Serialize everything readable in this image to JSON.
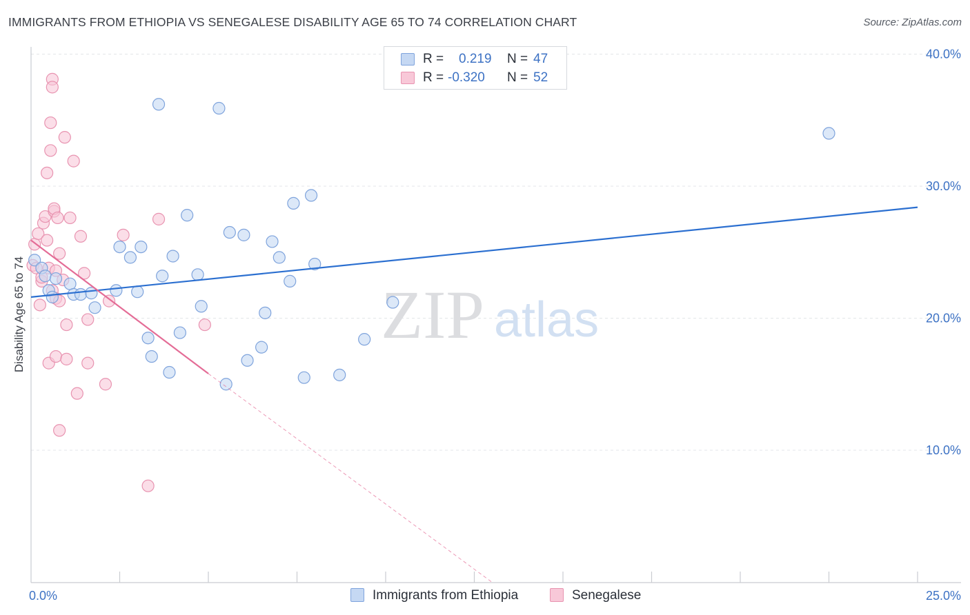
{
  "header": {
    "title": "IMMIGRANTS FROM ETHIOPIA VS SENEGALESE DISABILITY AGE 65 TO 74 CORRELATION CHART",
    "source": "Source: ZipAtlas.com"
  },
  "watermark": {
    "part1": "ZIP",
    "part2": "atlas"
  },
  "legend": {
    "rows": [
      {
        "r_label": "R =",
        "r_value": "0.219",
        "n_label": "N =",
        "n_value": "47"
      },
      {
        "r_label": "R =",
        "r_value": "-0.320",
        "n_label": "N =",
        "n_value": "52"
      }
    ]
  },
  "bottom_legend": {
    "series1": "Immigrants from Ethiopia",
    "series2": "Senegalese"
  },
  "colors": {
    "ethiopia_fill": "#c5d8f3",
    "ethiopia_stroke": "#7ea3dc",
    "ethiopia_line": "#2b6fd0",
    "senegalese_fill": "#f8c8d8",
    "senegalese_stroke": "#e893b0",
    "senegalese_line": "#e46c96",
    "grid": "#e3e5e8",
    "tick_label": "#3d72c4"
  },
  "chart_data": {
    "type": "scatter",
    "title": "IMMIGRANTS FROM ETHIOPIA VS SENEGALESE DISABILITY AGE 65 TO 74 CORRELATION CHART",
    "xlabel": "",
    "ylabel": "Disability Age 65 to 74",
    "xlim": [
      0,
      25
    ],
    "ylim": [
      0,
      40
    ],
    "x_tick_labels": [
      {
        "value": 0,
        "label": "0.0%"
      },
      {
        "value": 25,
        "label": "25.0%"
      }
    ],
    "y_tick_labels": [
      {
        "value": 10,
        "label": "10.0%"
      },
      {
        "value": 20,
        "label": "20.0%"
      },
      {
        "value": 30,
        "label": "30.0%"
      },
      {
        "value": 40,
        "label": "40.0%"
      }
    ],
    "gridlines_y": [
      10,
      20,
      30,
      40
    ],
    "series": [
      {
        "name": "Immigrants from Ethiopia",
        "R": 0.219,
        "N": 47,
        "trend": {
          "x0": 0,
          "y0": 21.6,
          "x1": 25,
          "y1": 28.4
        },
        "points": [
          [
            0.1,
            24.4
          ],
          [
            0.3,
            23.8
          ],
          [
            0.4,
            23.2
          ],
          [
            0.5,
            22.1
          ],
          [
            0.6,
            21.6
          ],
          [
            0.7,
            23.0
          ],
          [
            1.1,
            22.6
          ],
          [
            1.2,
            21.8
          ],
          [
            1.4,
            21.8
          ],
          [
            1.7,
            21.9
          ],
          [
            1.8,
            20.8
          ],
          [
            2.4,
            22.1
          ],
          [
            2.5,
            25.4
          ],
          [
            2.8,
            24.6
          ],
          [
            3.0,
            22.0
          ],
          [
            3.1,
            25.4
          ],
          [
            3.3,
            18.5
          ],
          [
            3.4,
            17.1
          ],
          [
            3.6,
            36.2
          ],
          [
            3.7,
            23.2
          ],
          [
            3.9,
            15.9
          ],
          [
            4.0,
            24.7
          ],
          [
            4.2,
            18.9
          ],
          [
            4.4,
            27.8
          ],
          [
            4.7,
            23.3
          ],
          [
            4.8,
            20.9
          ],
          [
            5.3,
            35.9
          ],
          [
            5.5,
            15.0
          ],
          [
            5.6,
            26.5
          ],
          [
            6.0,
            26.3
          ],
          [
            6.1,
            16.8
          ],
          [
            6.5,
            17.8
          ],
          [
            6.6,
            20.4
          ],
          [
            6.8,
            25.8
          ],
          [
            7.0,
            24.6
          ],
          [
            7.3,
            22.8
          ],
          [
            7.4,
            28.7
          ],
          [
            7.7,
            15.5
          ],
          [
            7.9,
            29.3
          ],
          [
            8.0,
            24.1
          ],
          [
            8.7,
            15.7
          ],
          [
            9.4,
            18.4
          ],
          [
            10.2,
            21.2
          ],
          [
            22.5,
            34.0
          ]
        ]
      },
      {
        "name": "Senegalese",
        "R": -0.32,
        "N": 52,
        "trend": {
          "x0": 0,
          "y0": 25.9,
          "x1": 5.0,
          "y1": 15.8
        },
        "trend_extension": {
          "x0": 5.0,
          "y0": 15.8,
          "x1": 13.0,
          "y1": 0.0
        },
        "points": [
          [
            0.05,
            24.0
          ],
          [
            0.1,
            25.6
          ],
          [
            0.15,
            23.8
          ],
          [
            0.2,
            26.4
          ],
          [
            0.25,
            21.0
          ],
          [
            0.3,
            22.8
          ],
          [
            0.3,
            23.1
          ],
          [
            0.35,
            27.2
          ],
          [
            0.4,
            27.7
          ],
          [
            0.45,
            25.9
          ],
          [
            0.45,
            31.0
          ],
          [
            0.5,
            23.8
          ],
          [
            0.5,
            16.6
          ],
          [
            0.55,
            34.8
          ],
          [
            0.55,
            32.7
          ],
          [
            0.6,
            38.1
          ],
          [
            0.6,
            37.5
          ],
          [
            0.6,
            22.1
          ],
          [
            0.65,
            28.1
          ],
          [
            0.65,
            28.3
          ],
          [
            0.7,
            23.6
          ],
          [
            0.7,
            21.5
          ],
          [
            0.7,
            17.1
          ],
          [
            0.75,
            27.6
          ],
          [
            0.8,
            24.9
          ],
          [
            0.8,
            21.3
          ],
          [
            0.8,
            11.5
          ],
          [
            0.9,
            22.9
          ],
          [
            0.95,
            33.7
          ],
          [
            1.0,
            16.9
          ],
          [
            1.0,
            19.5
          ],
          [
            1.1,
            27.6
          ],
          [
            1.2,
            31.9
          ],
          [
            1.3,
            14.3
          ],
          [
            1.4,
            26.2
          ],
          [
            1.5,
            23.4
          ],
          [
            1.6,
            19.9
          ],
          [
            1.6,
            16.6
          ],
          [
            2.1,
            15.0
          ],
          [
            2.2,
            21.3
          ],
          [
            2.6,
            26.3
          ],
          [
            3.3,
            7.3
          ],
          [
            3.6,
            27.5
          ],
          [
            4.9,
            19.5
          ]
        ]
      }
    ]
  }
}
